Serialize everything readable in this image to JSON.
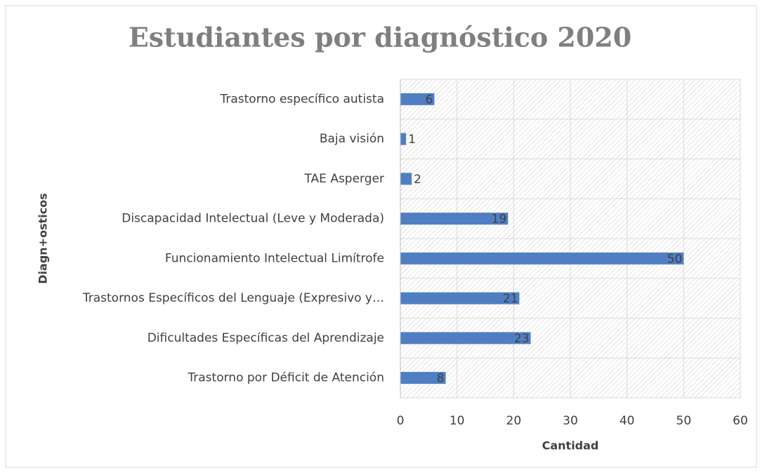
{
  "chart_data": {
    "type": "bar",
    "orientation": "horizontal",
    "title": "Estudiantes por diagnóstico 2020",
    "x_label": "Cantidad",
    "y_label": "Diagn+osticos",
    "categories": [
      "Trastorno específico autista",
      "Baja visión",
      "TAE Asperger",
      "Discapacidad Intelectual (Leve y Moderada)",
      "Funcionamiento Intelectual Limítrofe",
      "Trastornos Específicos del Lenguaje (Expresivo y…",
      "Dificultades Específicas del Aprendizaje",
      "Trastorno por Déficit de Atención"
    ],
    "values": [
      6,
      1,
      2,
      19,
      50,
      21,
      23,
      8
    ],
    "color": "#4f7fc2",
    "xlim": [
      0,
      60
    ],
    "xticks": [
      0,
      10,
      20,
      30,
      40,
      50,
      60
    ],
    "grid": true
  }
}
